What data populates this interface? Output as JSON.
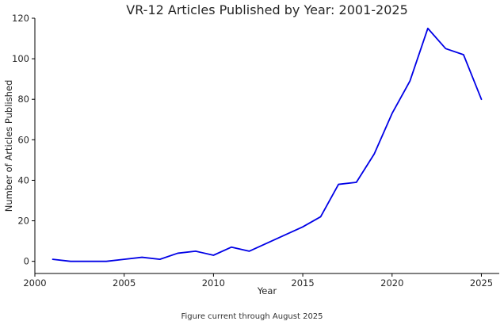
{
  "chart_data": {
    "type": "line",
    "title": "VR-12 Articles Published by Year: 2001-2025",
    "xlabel": "Year",
    "ylabel": "Number of Articles Published",
    "xlim": [
      2000,
      2026
    ],
    "ylim": [
      -6,
      120
    ],
    "xticks": [
      2000,
      2005,
      2010,
      2015,
      2020,
      2025
    ],
    "yticks": [
      0,
      20,
      40,
      60,
      80,
      100,
      120
    ],
    "grid": false,
    "series": [
      {
        "color": "#0000e6",
        "x": [
          2001,
          2002,
          2003,
          2004,
          2005,
          2006,
          2007,
          2008,
          2009,
          2010,
          2011,
          2012,
          2013,
          2014,
          2015,
          2016,
          2017,
          2018,
          2019,
          2020,
          2021,
          2022,
          2023,
          2024,
          2025
        ],
        "y": [
          1,
          0,
          0,
          0,
          1,
          2,
          1,
          4,
          5,
          3,
          7,
          5,
          9,
          13,
          17,
          22,
          38,
          39,
          53,
          73,
          89,
          115,
          105,
          102,
          80
        ]
      }
    ]
  },
  "caption": "Figure current through August 2025",
  "colors": {
    "line": "#0000e6",
    "axis": "#000000",
    "text": "#262626"
  }
}
